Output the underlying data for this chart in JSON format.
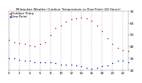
{
  "title": "Milwaukee Weather Outdoor Temperature vs Dew Point (24 Hours)",
  "title_fontsize": 2.8,
  "background_color": "#ffffff",
  "grid_color": "#bbbbbb",
  "temp_color": "#cc0000",
  "dew_color": "#0000cc",
  "black_color": "#000000",
  "hours": [
    0,
    1,
    2,
    3,
    4,
    5,
    6,
    7,
    8,
    9,
    10,
    11,
    12,
    13,
    14,
    15,
    16,
    17,
    18,
    19,
    20,
    21,
    22,
    23
  ],
  "temp": [
    46,
    44,
    43,
    42,
    41,
    40,
    42,
    44,
    50,
    56,
    58,
    61,
    63,
    64,
    65,
    64,
    62,
    58,
    53,
    47,
    42,
    39,
    37,
    36
  ],
  "dew": [
    30,
    30,
    29,
    28,
    28,
    27,
    27,
    27,
    27,
    26,
    25,
    25,
    25,
    24,
    23,
    22,
    21,
    22,
    23,
    24,
    26,
    28,
    28,
    27
  ],
  "ylim": [
    20,
    70
  ],
  "yticks": [
    20,
    30,
    40,
    50,
    60,
    70
  ],
  "ytick_labels": [
    "20",
    "30",
    "40",
    "50",
    "60",
    "70"
  ],
  "ylabel_fontsize": 3.2,
  "xlabel_fontsize": 2.8,
  "marker_size": 1.0,
  "legend_entries": [
    "Outdoor Temp",
    "Dew Point"
  ],
  "legend_fontsize": 2.8,
  "vgrid_every": 2,
  "xlim": [
    0,
    23
  ],
  "xtick_positions": [
    0,
    2,
    4,
    6,
    8,
    10,
    12,
    14,
    16,
    18,
    20,
    22
  ],
  "xtick_labels": [
    "0",
    "2",
    "4",
    "6",
    "8",
    "10",
    "12",
    "14",
    "16",
    "18",
    "20",
    "22"
  ]
}
